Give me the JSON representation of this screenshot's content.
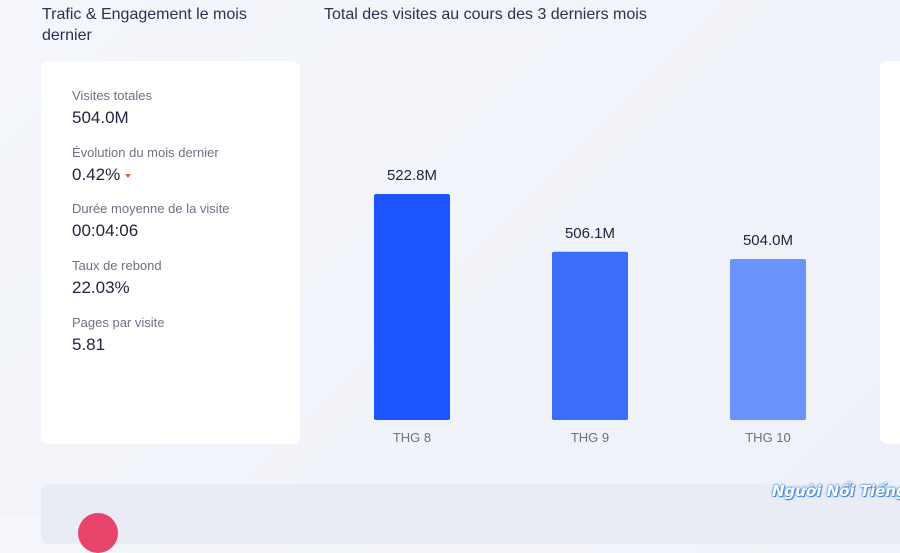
{
  "traffic": {
    "title": "Trafic & Engagement le mois dernier",
    "metrics": [
      {
        "label": "Visites totales",
        "value": "504.0M"
      },
      {
        "label": "Évolution du mois dernier",
        "value": "0.42%",
        "trend": "down"
      },
      {
        "label": "Durée moyenne de la visite",
        "value": "00:04:06"
      },
      {
        "label": "Taux de rebond",
        "value": "22.03%"
      },
      {
        "label": "Pages par visite",
        "value": "5.81"
      }
    ]
  },
  "colors": {
    "accent": "#1c55ff",
    "bar_colors": [
      "#1c55ff",
      "#3b6cfa",
      "#6b94fa"
    ],
    "trend_down": "#f05a3a"
  },
  "chart_data": {
    "type": "bar",
    "title": "Total des visites au cours des 3 derniers mois",
    "categories": [
      "THG 8",
      "THG 9",
      "THG 10"
    ],
    "values": [
      522.8,
      506.1,
      504.0
    ],
    "data_labels": [
      "522.8M",
      "506.1M",
      "504.0M"
    ],
    "unit": "M",
    "xlabel": "",
    "ylabel": "",
    "grid": false,
    "legend": "none"
  },
  "watermark": {
    "text": "Người Nổi Tiếng"
  }
}
